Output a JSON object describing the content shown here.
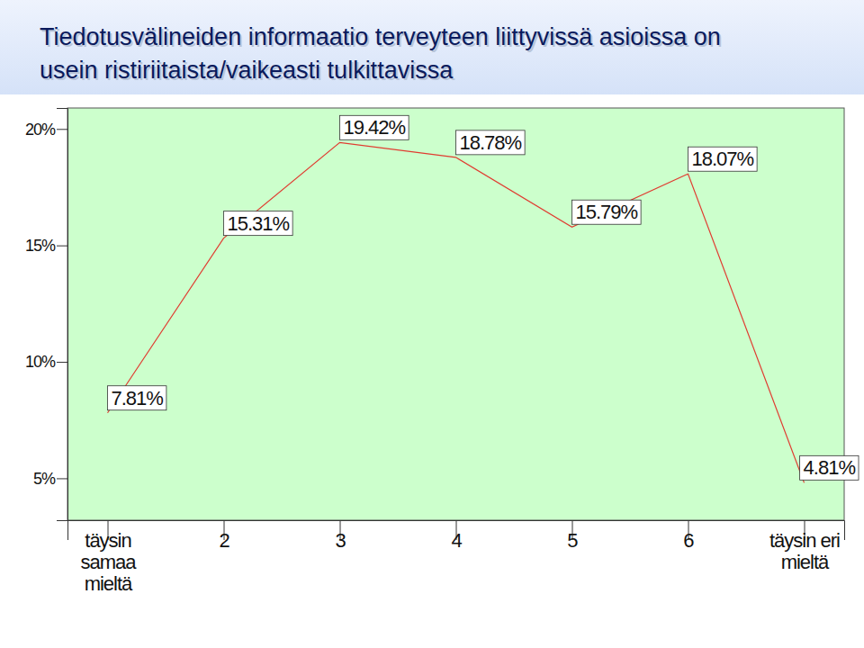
{
  "chart_data": {
    "type": "line",
    "title": "Tiedotusvälineiden informaatio terveyteen liittyvissä asioissa on usein ristiriitaista/vaikeasti tulkittavissa",
    "categories": [
      "täysin samaa mieltä",
      "2",
      "3",
      "4",
      "5",
      "6",
      "täysin eri mieltä"
    ],
    "values": [
      7.81,
      15.31,
      19.42,
      18.78,
      15.79,
      18.07,
      4.81
    ],
    "value_labels": [
      "7.81%",
      "15.31%",
      "19.42%",
      "18.78%",
      "15.79%",
      "18.07%",
      "4.81%"
    ],
    "color": "#e03c31",
    "ylim": [
      3.2,
      20.9
    ],
    "yticks": [
      {
        "value": 5,
        "label": "5%"
      },
      {
        "value": 10,
        "label": "10%"
      },
      {
        "value": 15,
        "label": "15%"
      },
      {
        "value": 20,
        "label": "20%"
      }
    ],
    "grid": false,
    "data_labels": true
  }
}
